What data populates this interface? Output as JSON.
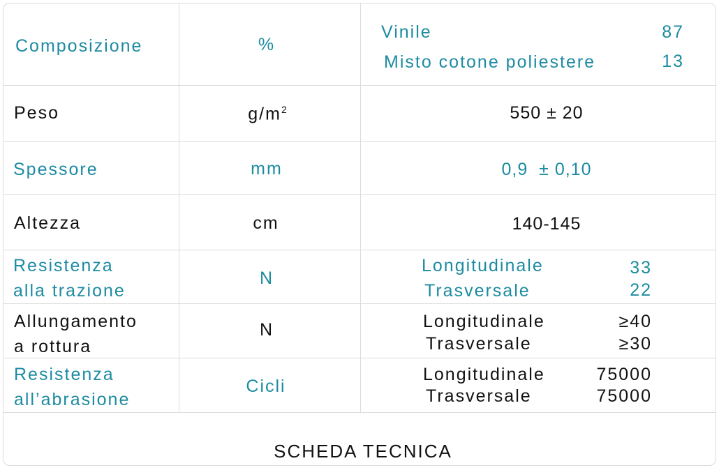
{
  "accent_color": "#1c8ba1",
  "rows": [
    {
      "label": "Composizione",
      "unit": "%",
      "values": [
        {
          "name": "Vinile",
          "value": "87"
        },
        {
          "name": "Misto cotone poliestere",
          "value": "13"
        }
      ]
    },
    {
      "label": "Peso",
      "unit": "g/m",
      "unit_sup": "2",
      "value": "550 ± 20"
    },
    {
      "label": "Spessore",
      "unit": "mm",
      "value": "0,9  ± 0,10"
    },
    {
      "label": "Altezza",
      "unit": "cm",
      "value": "140-145"
    },
    {
      "label_lines": [
        "Resistenza",
        "alla trazione"
      ],
      "unit": "N",
      "values": [
        {
          "name": "Longitudinale",
          "value": "33"
        },
        {
          "name": "Trasversale",
          "value": "22"
        }
      ]
    },
    {
      "label_lines": [
        "Allungamento",
        "a rottura"
      ],
      "unit": "N",
      "values": [
        {
          "name": "Longitudinale",
          "value": "≥40"
        },
        {
          "name": "Trasversale",
          "value": "≥30"
        }
      ]
    },
    {
      "label_lines": [
        "Resistenza",
        "all’abrasione"
      ],
      "unit": "Cicli",
      "values": [
        {
          "name": "Longitudinale",
          "value": "75000"
        },
        {
          "name": "Trasversale",
          "value": "75000"
        }
      ]
    }
  ],
  "footer": "SCHEDA TECNICA"
}
